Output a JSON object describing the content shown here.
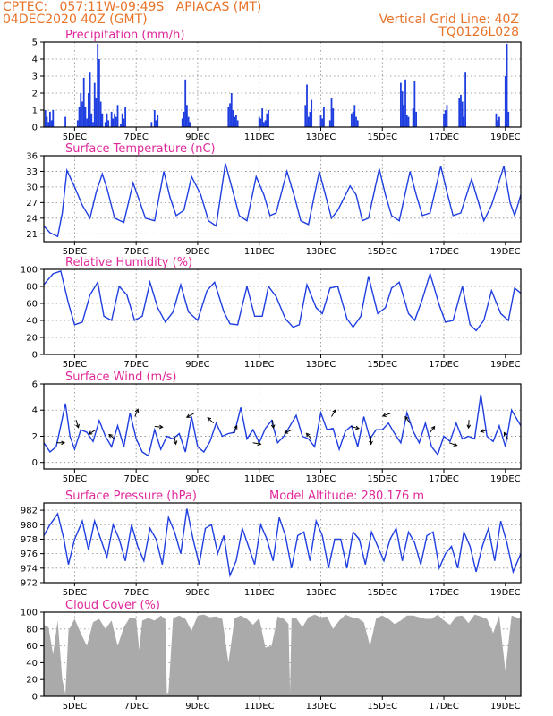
{
  "header": {
    "line1_left": "CPTEC:   057:11W-09:49S   APIACAS (MT)",
    "line2_left": "04DEC2020 40Z (GMT)",
    "line2_right": "Vertical Grid Line: 40Z",
    "line3_right": "TQ0126L028"
  },
  "colors": {
    "text_accent": "#e8742a",
    "title": "#e0289a",
    "series": "#1f3ee0",
    "cloud": "#aaaaaa"
  },
  "chart_data": [
    {
      "type": "bar",
      "title": "Precipitation (mm/h)",
      "x_start": 0,
      "x_end": 15.5,
      "ylim": [
        0,
        5
      ],
      "yticks": [
        0,
        1,
        2,
        3,
        4,
        5
      ],
      "xtick_labels": [
        "5DEC",
        "7DEC",
        "9DEC",
        "11DEC",
        "13DEC",
        "15DEC",
        "17DEC",
        "19DEC"
      ],
      "x": [
        0.05,
        0.1,
        0.15,
        0.2,
        0.25,
        0.3,
        0.7,
        1.1,
        1.15,
        1.2,
        1.25,
        1.3,
        1.35,
        1.4,
        1.45,
        1.5,
        1.55,
        1.6,
        1.65,
        1.7,
        1.75,
        1.8,
        1.85,
        1.9,
        2.0,
        2.05,
        2.1,
        2.2,
        2.25,
        2.3,
        2.35,
        2.4,
        2.5,
        2.55,
        2.6,
        2.65,
        3.5,
        3.6,
        3.65,
        3.7,
        4.5,
        4.55,
        4.6,
        4.65,
        4.7,
        4.75,
        6.0,
        6.05,
        6.1,
        6.15,
        6.2,
        6.25,
        6.3,
        7.0,
        7.05,
        7.1,
        7.15,
        7.2,
        7.25,
        7.3,
        8.5,
        8.55,
        8.6,
        8.65,
        8.7,
        9.0,
        9.05,
        9.1,
        9.3,
        9.35,
        9.4,
        10.0,
        10.05,
        10.1,
        10.15,
        10.2,
        11.6,
        11.65,
        11.7,
        11.75,
        11.8,
        11.85,
        12.0,
        12.05,
        12.1,
        13.0,
        13.05,
        13.1,
        13.5,
        13.55,
        13.6,
        13.65,
        13.7,
        14.7,
        14.75,
        14.8,
        15.0,
        15.05,
        15.1
      ],
      "values": [
        1.0,
        0.6,
        0.3,
        0.9,
        0.4,
        1.0,
        0.6,
        0.4,
        1.2,
        2.0,
        1.5,
        2.9,
        1.2,
        0.5,
        2.0,
        3.2,
        0.8,
        0.3,
        2.6,
        1.7,
        4.9,
        4.0,
        1.5,
        0.8,
        0.3,
        0.8,
        0.4,
        0.9,
        0.5,
        0.8,
        0.6,
        1.3,
        0.2,
        0.8,
        0.5,
        1.2,
        0.3,
        1.0,
        0.4,
        0.7,
        0.5,
        0.9,
        2.8,
        1.3,
        0.6,
        0.3,
        1.2,
        1.4,
        2.0,
        1.0,
        0.6,
        0.7,
        0.4,
        0.6,
        0.5,
        1.1,
        0.3,
        0.4,
        0.8,
        1.0,
        1.3,
        2.5,
        0.6,
        0.9,
        1.6,
        0.7,
        0.5,
        1.2,
        0.4,
        1.7,
        1.1,
        0.8,
        0.9,
        1.3,
        0.6,
        0.4,
        2.6,
        2.1,
        1.3,
        2.8,
        0.7,
        0.6,
        1.1,
        2.7,
        0.9,
        0.8,
        1.0,
        1.3,
        1.7,
        1.9,
        1.5,
        0.6,
        3.2,
        0.8,
        0.4,
        0.6,
        3.0,
        4.9,
        0.9
      ]
    },
    {
      "type": "line",
      "title": "Surface Temperature (nC)",
      "x_start": 0,
      "x_end": 15.5,
      "ylim": [
        19.5,
        36
      ],
      "yticks": [
        21,
        24,
        27,
        30,
        33,
        36
      ],
      "xtick_labels": [
        "5DEC",
        "7DEC",
        "9DEC",
        "11DEC",
        "13DEC",
        "15DEC",
        "17DEC",
        "19DEC"
      ],
      "x": [
        0,
        0.2,
        0.45,
        0.6,
        0.75,
        1.0,
        1.25,
        1.5,
        1.7,
        1.9,
        2.05,
        2.3,
        2.6,
        2.9,
        3.1,
        3.3,
        3.6,
        3.9,
        4.1,
        4.3,
        4.55,
        4.8,
        5.1,
        5.35,
        5.6,
        5.9,
        6.15,
        6.35,
        6.6,
        6.9,
        7.15,
        7.35,
        7.55,
        7.9,
        8.15,
        8.35,
        8.6,
        8.95,
        9.15,
        9.35,
        9.55,
        9.95,
        10.15,
        10.35,
        10.55,
        10.9,
        11.1,
        11.3,
        11.55,
        11.9,
        12.1,
        12.3,
        12.55,
        12.9,
        13.1,
        13.3,
        13.55,
        13.9,
        14.1,
        14.3,
        14.55,
        14.95,
        15.15,
        15.3,
        15.5
      ],
      "values": [
        22.5,
        21.2,
        20.5,
        25,
        33.2,
        30,
        26.5,
        24,
        29,
        32.5,
        29.8,
        24,
        23.2,
        30.8,
        27.5,
        24,
        23.5,
        33,
        28,
        24.5,
        25.5,
        32,
        28.5,
        23.5,
        22.5,
        34.5,
        29,
        24.5,
        23.5,
        32,
        28.5,
        24.5,
        25,
        33,
        28,
        23.5,
        22.8,
        33,
        28.5,
        24,
        25.5,
        30.2,
        28.5,
        23.5,
        24,
        33.5,
        28.5,
        24.5,
        23.5,
        33,
        28.5,
        24.5,
        25,
        34,
        29,
        24.5,
        25,
        31.5,
        27.5,
        23.5,
        26.5,
        34,
        27,
        24.5,
        28.5
      ]
    },
    {
      "type": "line",
      "title": "Relative Humidity (%)",
      "x_start": 0,
      "x_end": 15.5,
      "ylim": [
        0,
        100
      ],
      "yticks": [
        0,
        20,
        40,
        60,
        80,
        100
      ],
      "xtick_labels": [
        "5DEC",
        "7DEC",
        "9DEC",
        "11DEC",
        "13DEC",
        "15DEC",
        "17DEC",
        "19DEC"
      ],
      "x": [
        0,
        0.3,
        0.55,
        0.8,
        1.0,
        1.25,
        1.5,
        1.75,
        1.95,
        2.2,
        2.45,
        2.7,
        2.95,
        3.2,
        3.45,
        3.7,
        3.95,
        4.2,
        4.45,
        4.7,
        5.0,
        5.3,
        5.55,
        5.85,
        6.05,
        6.3,
        6.6,
        6.85,
        7.1,
        7.3,
        7.55,
        7.85,
        8.1,
        8.3,
        8.55,
        8.85,
        9.05,
        9.3,
        9.55,
        9.85,
        10.05,
        10.3,
        10.55,
        10.85,
        11.1,
        11.3,
        11.55,
        11.85,
        12.05,
        12.3,
        12.55,
        12.85,
        13.05,
        13.3,
        13.6,
        13.85,
        14.05,
        14.3,
        14.55,
        14.85,
        15.1,
        15.3,
        15.5
      ],
      "values": [
        82,
        95,
        98,
        60,
        35,
        38,
        70,
        85,
        45,
        40,
        80,
        70,
        40,
        45,
        85,
        55,
        38,
        50,
        82,
        50,
        40,
        75,
        85,
        50,
        36,
        35,
        80,
        45,
        45,
        80,
        68,
        42,
        32,
        35,
        82,
        55,
        48,
        78,
        80,
        42,
        32,
        45,
        92,
        48,
        55,
        78,
        85,
        48,
        40,
        65,
        95,
        58,
        38,
        40,
        80,
        35,
        28,
        40,
        75,
        48,
        40,
        78,
        72
      ]
    },
    {
      "type": "line",
      "title": "Surface Wind (m/s)",
      "x_start": 0,
      "x_end": 15.5,
      "ylim": [
        -0.5,
        6
      ],
      "yticks": [
        0,
        2,
        4,
        6
      ],
      "xtick_labels": [
        "5DEC",
        "7DEC",
        "9DEC",
        "11DEC",
        "13DEC",
        "15DEC",
        "17DEC",
        "19DEC"
      ],
      "x": [
        0,
        0.2,
        0.4,
        0.55,
        0.7,
        0.85,
        1.0,
        1.2,
        1.4,
        1.6,
        1.8,
        2.0,
        2.2,
        2.4,
        2.6,
        2.8,
        3.0,
        3.2,
        3.4,
        3.6,
        3.8,
        4.0,
        4.2,
        4.4,
        4.6,
        4.8,
        5.0,
        5.2,
        5.4,
        5.6,
        5.8,
        6.0,
        6.2,
        6.4,
        6.6,
        6.8,
        7.0,
        7.2,
        7.4,
        7.6,
        7.8,
        8.0,
        8.2,
        8.4,
        8.6,
        8.8,
        9.0,
        9.2,
        9.4,
        9.6,
        9.8,
        10.0,
        10.2,
        10.4,
        10.6,
        10.8,
        11.0,
        11.2,
        11.4,
        11.6,
        11.8,
        12.0,
        12.2,
        12.4,
        12.6,
        12.8,
        13.0,
        13.2,
        13.4,
        13.6,
        13.8,
        14.0,
        14.2,
        14.4,
        14.6,
        14.8,
        15.0,
        15.2,
        15.5
      ],
      "values": [
        1.5,
        0.8,
        1.2,
        2.8,
        4.5,
        2.0,
        1.0,
        2.5,
        2.3,
        1.6,
        3.2,
        2.0,
        1.2,
        2.8,
        1.2,
        3.8,
        1.8,
        0.8,
        0.5,
        2.5,
        1.0,
        2.0,
        1.8,
        2.2,
        0.8,
        3.5,
        1.2,
        0.8,
        1.6,
        3.0,
        2.0,
        2.2,
        2.3,
        4.2,
        1.8,
        2.5,
        1.5,
        2.6,
        3.2,
        1.5,
        2.0,
        2.8,
        3.6,
        2.0,
        1.8,
        1.2,
        3.8,
        2.5,
        2.6,
        1.0,
        2.4,
        2.8,
        1.2,
        3.5,
        1.8,
        2.5,
        2.5,
        3.0,
        2.2,
        1.5,
        3.8,
        2.4,
        1.5,
        3.0,
        1.2,
        0.6,
        2.0,
        1.6,
        3.0,
        1.8,
        2.0,
        1.8,
        5.2,
        2.0,
        1.6,
        2.8,
        1.2,
        4.0,
        2.8
      ]
    },
    {
      "type": "line",
      "title": "Surface Pressure (hPa)",
      "subtitle": "Model Altitude: 280.176 m",
      "x_start": 0,
      "x_end": 15.5,
      "ylim": [
        972,
        983
      ],
      "yticks": [
        972,
        974,
        976,
        978,
        980,
        982
      ],
      "xtick_labels": [
        "5DEC",
        "7DEC",
        "9DEC",
        "11DEC",
        "13DEC",
        "15DEC",
        "17DEC",
        "19DEC"
      ],
      "x": [
        0,
        0.2,
        0.45,
        0.65,
        0.8,
        1.0,
        1.25,
        1.45,
        1.65,
        1.85,
        2.05,
        2.25,
        2.45,
        2.65,
        2.85,
        3.05,
        3.25,
        3.45,
        3.65,
        3.85,
        4.05,
        4.25,
        4.45,
        4.65,
        4.85,
        5.05,
        5.25,
        5.45,
        5.65,
        5.85,
        6.05,
        6.25,
        6.45,
        6.65,
        6.85,
        7.05,
        7.25,
        7.45,
        7.65,
        7.85,
        8.05,
        8.25,
        8.45,
        8.65,
        8.85,
        9.05,
        9.25,
        9.45,
        9.65,
        9.85,
        10.05,
        10.25,
        10.45,
        10.65,
        10.85,
        11.05,
        11.25,
        11.45,
        11.65,
        11.85,
        12.05,
        12.25,
        12.45,
        12.65,
        12.85,
        13.05,
        13.25,
        13.45,
        13.65,
        13.85,
        14.05,
        14.25,
        14.45,
        14.65,
        14.85,
        15.05,
        15.25,
        15.5
      ],
      "values": [
        978.5,
        980,
        981.5,
        978,
        974.5,
        978,
        980.5,
        976.5,
        980.5,
        978,
        975.5,
        980,
        978,
        975,
        980,
        977,
        975,
        979.5,
        978,
        974.5,
        981,
        979,
        976,
        982.2,
        978,
        974.5,
        979.5,
        980,
        976,
        978.5,
        973,
        975,
        979.5,
        977,
        974.5,
        980,
        978,
        975,
        981,
        978.5,
        974,
        978.5,
        979,
        975,
        980.5,
        978.5,
        974,
        978,
        978,
        974,
        979,
        978,
        974.5,
        979,
        977,
        975,
        978,
        979.5,
        975,
        979,
        977.5,
        974.5,
        978.5,
        979,
        974,
        976,
        977,
        974,
        979,
        977,
        973.5,
        977,
        979.5,
        975,
        980.5,
        977.5,
        973.5,
        976
      ]
    },
    {
      "type": "area",
      "title": "Cloud Cover (%)",
      "x_start": 0,
      "x_end": 15.5,
      "ylim": [
        0,
        100
      ],
      "yticks": [
        0,
        20,
        40,
        60,
        80,
        100
      ],
      "xtick_labels": [
        "5DEC",
        "7DEC",
        "9DEC",
        "11DEC",
        "13DEC",
        "15DEC",
        "17DEC",
        "19DEC"
      ],
      "x": [
        0,
        0.15,
        0.3,
        0.45,
        0.6,
        0.7,
        0.8,
        1.0,
        1.2,
        1.4,
        1.6,
        1.8,
        2.0,
        2.2,
        2.4,
        2.6,
        2.8,
        3.0,
        3.1,
        3.2,
        3.4,
        3.6,
        3.8,
        3.95,
        4.0,
        4.05,
        4.2,
        4.4,
        4.6,
        4.8,
        5.0,
        5.2,
        5.4,
        5.6,
        5.8,
        6.0,
        6.2,
        6.4,
        6.6,
        6.8,
        7.0,
        7.2,
        7.4,
        7.6,
        7.8,
        7.95,
        8.0,
        8.05,
        8.2,
        8.4,
        8.6,
        8.8,
        9.0,
        9.2,
        9.4,
        9.6,
        9.8,
        10.0,
        10.2,
        10.4,
        10.6,
        10.8,
        11.0,
        11.2,
        11.4,
        11.6,
        11.8,
        12.0,
        12.2,
        12.4,
        12.6,
        12.8,
        13.0,
        13.2,
        13.4,
        13.6,
        13.8,
        14.0,
        14.2,
        14.4,
        14.6,
        14.8,
        15.0,
        15.2,
        15.5
      ],
      "values": [
        85,
        82,
        50,
        90,
        20,
        3,
        78,
        92,
        75,
        60,
        88,
        92,
        80,
        90,
        60,
        82,
        94,
        92,
        55,
        90,
        93,
        90,
        96,
        92,
        3,
        5,
        93,
        96,
        92,
        78,
        96,
        97,
        94,
        95,
        92,
        40,
        93,
        96,
        92,
        85,
        93,
        58,
        60,
        95,
        92,
        86,
        5,
        93,
        93,
        82,
        94,
        97,
        94,
        95,
        80,
        90,
        97,
        94,
        93,
        88,
        60,
        93,
        96,
        92,
        86,
        90,
        96,
        96,
        94,
        92,
        92,
        97,
        90,
        85,
        95,
        96,
        87,
        97,
        95,
        92,
        75,
        96,
        30,
        96,
        92
      ]
    }
  ]
}
